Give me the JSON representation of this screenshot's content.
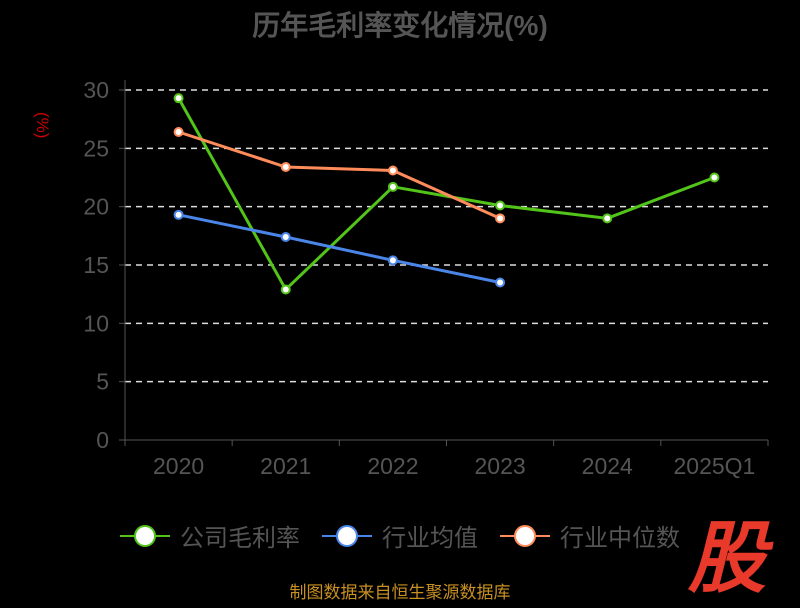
{
  "chart_data": {
    "type": "line",
    "title": "历年毛利率变化情况(%)",
    "ylabel": "(%)",
    "xlabel": "",
    "categories": [
      "2020",
      "2021",
      "2022",
      "2023",
      "2024",
      "2025Q1"
    ],
    "ylim": [
      0,
      30
    ],
    "yticks": [
      0,
      5,
      10,
      15,
      20,
      25,
      30
    ],
    "grid": true,
    "legend_position": "bottom",
    "series": [
      {
        "name": "公司毛利率",
        "color": "#52c41a",
        "values": [
          29.3,
          12.9,
          21.7,
          20.1,
          19.0,
          22.5
        ]
      },
      {
        "name": "行业均值",
        "color": "#4a86e8",
        "values": [
          19.3,
          17.4,
          15.4,
          13.5,
          null,
          null
        ]
      },
      {
        "name": "行业中位数",
        "color": "#ff8c5a",
        "values": [
          26.4,
          23.4,
          23.1,
          19.0,
          null,
          null
        ]
      }
    ]
  },
  "source": "制图数据来自恒生聚源数据库",
  "logo_text": "股"
}
